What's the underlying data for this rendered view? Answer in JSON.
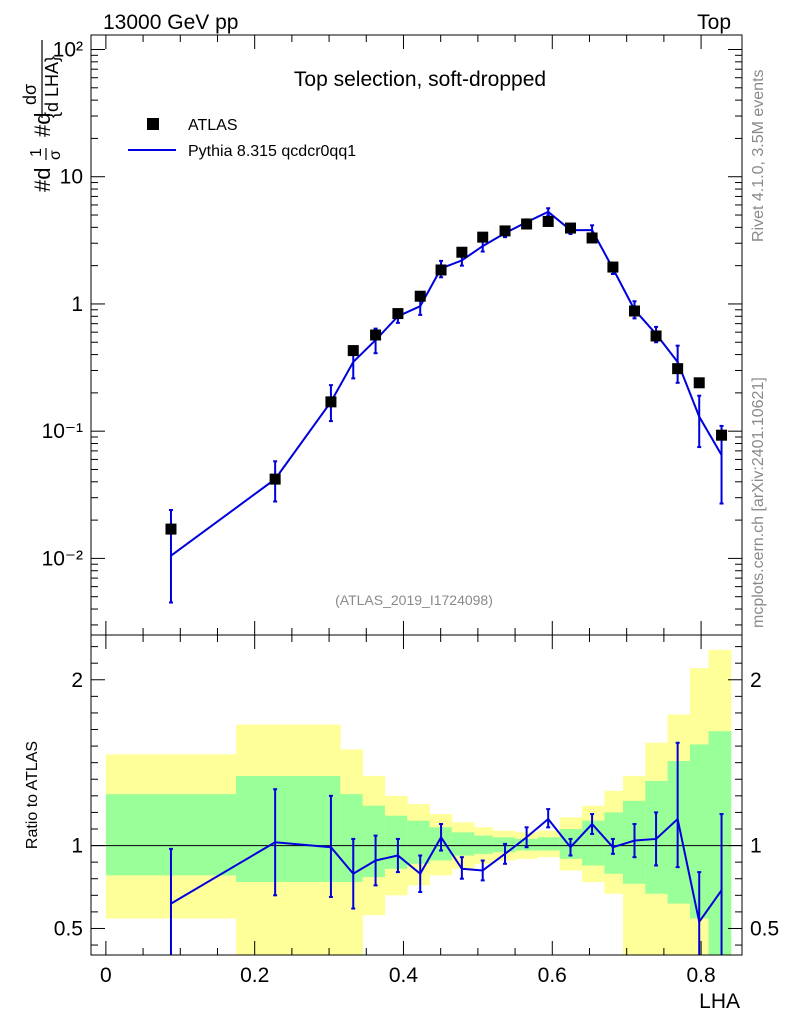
{
  "header": {
    "left": "13000 GeV pp",
    "right": "Top"
  },
  "side_labels": {
    "rivet": "Rivet 4.1.0,  3.5M events",
    "mcplots": "mcplots.cern.ch [arXiv:2401.10621]"
  },
  "colors": {
    "data": "#000000",
    "mc": "#0000dd",
    "band_inner": "#99ff99",
    "band_outer": "#ffff99",
    "watermark": "#8a8a8a"
  },
  "chart_data": [
    {
      "type": "scatter",
      "title": "Top selection, soft-dropped",
      "watermark": "(ATLAS_2019_I1724098)",
      "ylabel": "#dσ / #d{d LHA}",
      "yscale": "log",
      "ylim": [
        0.0025,
        130
      ],
      "xlim": [
        -0.02,
        0.855
      ],
      "y_ticks": [
        {
          "value": 0.01,
          "label": "10⁻²"
        },
        {
          "value": 0.1,
          "label": "10⁻¹"
        },
        {
          "value": 1,
          "label": "1"
        },
        {
          "value": 10,
          "label": "10"
        },
        {
          "value": 100,
          "label": "10²"
        }
      ],
      "legend": [
        {
          "name": "ATLAS",
          "marker": "square"
        },
        {
          "name": "Pythia 8.315 qcdcr0qq1",
          "marker": "line"
        }
      ],
      "series": [
        {
          "name": "ATLAS",
          "x": [
            0.0875,
            0.2275,
            0.3025,
            0.3325,
            0.3625,
            0.3925,
            0.4225,
            0.4505,
            0.4785,
            0.5065,
            0.5365,
            0.5655,
            0.5945,
            0.6245,
            0.6535,
            0.6815,
            0.7105,
            0.7395,
            0.7685,
            0.7975,
            0.8275
          ],
          "y": [
            0.017,
            0.042,
            0.17,
            0.43,
            0.57,
            0.84,
            1.15,
            1.85,
            2.55,
            3.35,
            3.75,
            4.25,
            4.45,
            3.95,
            3.3,
            1.95,
            0.88,
            0.56,
            0.31,
            0.24,
            0.093
          ]
        },
        {
          "name": "Pythia 8.315 qcdcr0qq1",
          "x": [
            0.0875,
            0.2275,
            0.3025,
            0.3325,
            0.3625,
            0.3925,
            0.4225,
            0.4505,
            0.4785,
            0.5065,
            0.5365,
            0.5655,
            0.5945,
            0.6245,
            0.6535,
            0.6815,
            0.7105,
            0.7395,
            0.7685,
            0.7975,
            0.8275
          ],
          "y": [
            0.0105,
            0.042,
            0.17,
            0.35,
            0.52,
            0.8,
            0.96,
            1.9,
            2.2,
            2.85,
            3.6,
            4.4,
            5.3,
            3.8,
            3.8,
            1.9,
            0.9,
            0.58,
            0.35,
            0.13,
            0.065
          ],
          "err_low": [
            0.0045,
            0.028,
            0.12,
            0.26,
            0.41,
            0.71,
            0.82,
            1.62,
            2.0,
            2.58,
            3.35,
            4.15,
            4.95,
            3.55,
            3.45,
            1.72,
            0.77,
            0.5,
            0.24,
            0.075,
            0.027
          ],
          "err_high": [
            0.024,
            0.058,
            0.23,
            0.46,
            0.64,
            0.9,
            1.12,
            2.18,
            2.42,
            3.12,
            3.85,
            4.62,
            5.65,
            4.05,
            4.15,
            2.1,
            1.05,
            0.66,
            0.47,
            0.19,
            0.11
          ]
        }
      ]
    },
    {
      "type": "line",
      "ylabel": "Ratio to ATLAS",
      "xlabel": "LHA",
      "ylim": [
        0.34,
        2.27
      ],
      "xlim": [
        -0.02,
        0.855
      ],
      "x_ticks": [
        0,
        0.2,
        0.4,
        0.6,
        0.8
      ],
      "y_ticks": [
        0.5,
        1,
        2
      ],
      "bands": {
        "edges": [
          0,
          0.175,
          0.28,
          0.315,
          0.345,
          0.375,
          0.405,
          0.435,
          0.465,
          0.495,
          0.52,
          0.55,
          0.58,
          0.61,
          0.64,
          0.67,
          0.695,
          0.725,
          0.755,
          0.785,
          0.81,
          0.84
        ],
        "outer_low": [
          0.56,
          0.34,
          0.34,
          0.34,
          0.58,
          0.7,
          0.76,
          0.82,
          0.86,
          0.89,
          0.91,
          0.92,
          0.93,
          0.85,
          0.78,
          0.71,
          0.34,
          0.34,
          0.34,
          0.34,
          0.34
        ],
        "outer_high": [
          1.55,
          1.73,
          1.73,
          1.58,
          1.42,
          1.3,
          1.25,
          1.19,
          1.14,
          1.11,
          1.09,
          1.08,
          1.09,
          1.17,
          1.24,
          1.33,
          1.42,
          1.62,
          1.79,
          2.07,
          2.18
        ],
        "inner_low": [
          0.82,
          0.78,
          0.78,
          0.78,
          0.81,
          0.86,
          0.89,
          0.91,
          0.94,
          0.95,
          0.96,
          0.97,
          0.97,
          0.92,
          0.88,
          0.83,
          0.77,
          0.71,
          0.65,
          0.56,
          0.34
        ],
        "inner_high": [
          1.31,
          1.42,
          1.42,
          1.31,
          1.24,
          1.18,
          1.15,
          1.11,
          1.08,
          1.06,
          1.05,
          1.04,
          1.05,
          1.1,
          1.15,
          1.2,
          1.27,
          1.39,
          1.51,
          1.61,
          1.69
        ]
      },
      "series": [
        {
          "name": "Pythia 8.315 qcdcr0qq1 / ATLAS",
          "x": [
            0.0875,
            0.2275,
            0.3025,
            0.3325,
            0.3625,
            0.3925,
            0.4225,
            0.4505,
            0.4785,
            0.5065,
            0.5365,
            0.5655,
            0.5945,
            0.6245,
            0.6535,
            0.6815,
            0.7105,
            0.7395,
            0.7685,
            0.7975,
            0.8275
          ],
          "y": [
            0.65,
            1.02,
            0.99,
            0.83,
            0.91,
            0.94,
            0.83,
            1.05,
            0.86,
            0.85,
            0.95,
            1.05,
            1.16,
            0.99,
            1.13,
            0.99,
            1.03,
            1.04,
            1.16,
            0.54,
            0.73
          ],
          "err_low": [
            0.34,
            0.7,
            0.69,
            0.62,
            0.76,
            0.84,
            0.72,
            0.97,
            0.8,
            0.79,
            0.89,
            0.99,
            1.11,
            0.94,
            1.07,
            0.95,
            0.93,
            0.88,
            0.87,
            0.34,
            0.34
          ],
          "err_high": [
            0.98,
            1.34,
            1.3,
            1.04,
            1.06,
            1.04,
            0.94,
            1.13,
            0.93,
            0.91,
            1.01,
            1.11,
            1.22,
            1.04,
            1.19,
            1.04,
            1.13,
            1.2,
            1.62,
            0.84,
            1.19
          ]
        }
      ]
    }
  ]
}
